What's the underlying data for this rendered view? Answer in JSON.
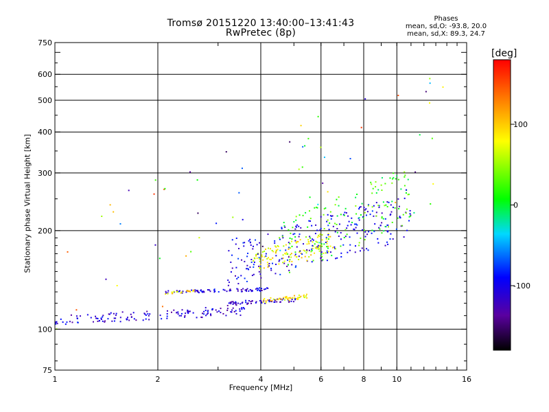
{
  "header": {
    "title_line1": "Tromsø 20151220 13:40:00–13:41:43",
    "title_line2": "RwPretec (8p)"
  },
  "phases": {
    "title": "Phases",
    "line_o": "mean, sd,O: -93.8, 20.0",
    "line_x": "mean, sd,X: 89.3, 24.7"
  },
  "colorbar": {
    "unit": "[deg]",
    "ticks": [
      "100",
      "0",
      "-100"
    ],
    "tick_values": [
      100,
      0,
      -100
    ],
    "range": [
      -180,
      180
    ]
  },
  "chart_data": {
    "type": "scatter",
    "title": "Tromsø 20151220 13:40:00–13:41:43",
    "subtitle": "RwPretec (8p)",
    "xlabel": "Frequency [MHz]",
    "ylabel": "Stationary phase Virtual Height [km]",
    "x_scale": "log",
    "y_scale": "log",
    "xlim": [
      1,
      16
    ],
    "ylim": [
      75,
      750
    ],
    "x_ticks": [
      1,
      2,
      4,
      6,
      8,
      10,
      16
    ],
    "x_tick_labels": [
      "1",
      "2",
      "4",
      "6",
      "8",
      "10",
      "16"
    ],
    "y_ticks": [
      75,
      100,
      200,
      300,
      400,
      500,
      600,
      750
    ],
    "y_tick_labels": [
      "75",
      "100",
      "200",
      "300",
      "400",
      "500",
      "600",
      "750"
    ],
    "grid": true,
    "color_by": "phase [deg]",
    "clusters": [
      {
        "freq_range": [
          1.0,
          3.6
        ],
        "height_range": [
          103,
          118
        ],
        "phase_mean": -110,
        "count": 140
      },
      {
        "freq_range": [
          2.1,
          4.2
        ],
        "height_range": [
          128,
          134
        ],
        "phase_mean": -110,
        "count": 80
      },
      {
        "freq_range": [
          2.1,
          2.6
        ],
        "height_range": [
          128,
          132
        ],
        "phase_mean": 90,
        "count": 20
      },
      {
        "freq_range": [
          3.2,
          5.2
        ],
        "height_range": [
          118,
          125
        ],
        "phase_mean": -110,
        "count": 60
      },
      {
        "freq_range": [
          4.0,
          5.5
        ],
        "height_range": [
          120,
          128
        ],
        "phase_mean": 90,
        "count": 45
      },
      {
        "freq_range": [
          3.8,
          6.5
        ],
        "height_range": [
          150,
          200
        ],
        "phase_mean": 80,
        "count": 120
      },
      {
        "freq_range": [
          3.2,
          11.0
        ],
        "height_range": [
          135,
          260
        ],
        "phase_mean": -100,
        "count": 260
      },
      {
        "freq_range": [
          4.5,
          11.0
        ],
        "height_range": [
          140,
          320
        ],
        "phase_mean": 20,
        "count": 140
      },
      {
        "freq_range": [
          1.0,
          14.0
        ],
        "height_range": [
          78,
          650
        ],
        "phase_mean": 0,
        "count": 70
      }
    ]
  }
}
